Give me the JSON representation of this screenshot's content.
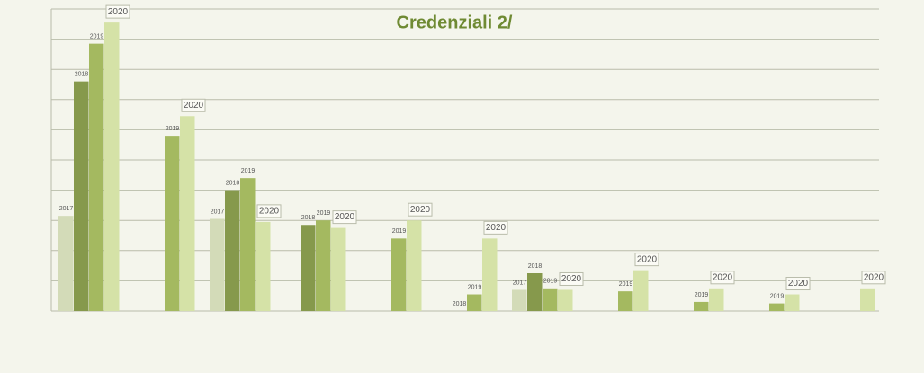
{
  "chart_data": {
    "type": "bar",
    "title": "Credenziali 2/",
    "categories": [
      null,
      null,
      null,
      null,
      null,
      null,
      null,
      null,
      null,
      null,
      null
    ],
    "series": [
      {
        "name": "2017",
        "color": "#d3dbb8",
        "values": [
          3.15,
          null,
          3.05,
          null,
          null,
          null,
          0.7,
          null,
          null,
          null,
          null
        ]
      },
      {
        "name": "2018",
        "color": "#86994c",
        "values": [
          7.6,
          null,
          4.0,
          2.85,
          null,
          0,
          1.25,
          null,
          null,
          null,
          null
        ]
      },
      {
        "name": "2019",
        "color": "#a4b960",
        "values": [
          8.85,
          5.8,
          4.4,
          3.0,
          2.4,
          0.55,
          0.75,
          0.65,
          0.3,
          0.25,
          null
        ]
      },
      {
        "name": "2020",
        "color": "#d5e2a7",
        "values": [
          9.55,
          6.45,
          2.95,
          2.75,
          3.0,
          2.4,
          0.7,
          1.35,
          0.75,
          0.55,
          0.75
        ]
      }
    ],
    "ylim": [
      0,
      10
    ],
    "yticks": [
      0,
      1,
      2,
      3,
      4,
      5,
      6,
      7,
      8,
      9,
      10
    ],
    "grid": true
  }
}
